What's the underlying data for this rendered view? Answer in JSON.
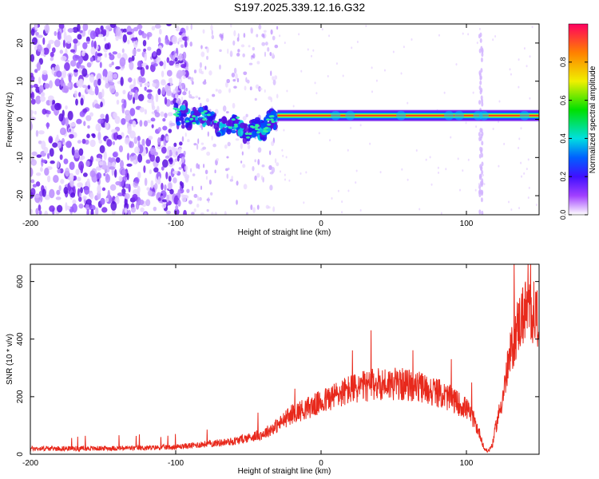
{
  "title": "S197.2025.339.12.16.G32",
  "chart_data": [
    {
      "type": "heatmap",
      "panel": "spectrogram",
      "xlabel": "Height of straight line (km)",
      "ylabel": "Frequency (Hz)",
      "xlim": [
        -200,
        150
      ],
      "ylim": [
        -25,
        25
      ],
      "xticks": [
        -200,
        -100,
        0,
        100
      ],
      "xtick_labels": [
        "-200",
        "-100",
        "0",
        "100"
      ],
      "yticks": [
        -20,
        -10,
        0,
        10,
        20
      ],
      "ytick_labels": [
        "-20",
        "-10",
        "0",
        "10",
        "20"
      ],
      "colorbar": {
        "label": "Normalized spectral amplitude",
        "range": [
          0,
          1
        ],
        "ticks": [
          0.0,
          0.2,
          0.4,
          0.6,
          0.8
        ],
        "tick_labels": [
          "0.0",
          "0.2",
          "0.4",
          "0.6",
          "0.8"
        ]
      },
      "features": {
        "noise_region_x": [
          -200,
          -100
        ],
        "scatter_region_x": [
          -100,
          -30
        ],
        "carrier_line_x": [
          -30,
          150
        ],
        "carrier_line_freq_hz": 1,
        "vertical_streak_x": 110
      },
      "ridge": {
        "x": [
          -100,
          -90,
          -80,
          -70,
          -60,
          -50,
          -45,
          -40,
          -35,
          -30
        ],
        "freq": [
          1.5,
          0,
          1,
          -2,
          -1,
          -4,
          -2,
          -3,
          0,
          0
        ]
      }
    },
    {
      "type": "line",
      "panel": "snr",
      "xlabel": "Height of straight line (km)",
      "ylabel": "SNR (10 * v/v)",
      "xlim": [
        -200,
        150
      ],
      "ylim": [
        0,
        660
      ],
      "xticks": [
        -200,
        -100,
        0,
        100
      ],
      "xtick_labels": [
        "-200",
        "-100",
        "0",
        "100"
      ],
      "yticks": [
        0,
        200,
        400,
        600
      ],
      "ytick_labels": [
        "0",
        "200",
        "400",
        "600"
      ],
      "series": [
        {
          "name": "SNR",
          "color": "#e8291c",
          "x": [
            -200,
            -160,
            -120,
            -100,
            -80,
            -60,
            -40,
            -30,
            -20,
            -10,
            0,
            10,
            20,
            30,
            40,
            50,
            60,
            70,
            80,
            90,
            100,
            105,
            110,
            112,
            115,
            118,
            120,
            125,
            130,
            135,
            140,
            145,
            150
          ],
          "values": [
            20,
            20,
            22,
            25,
            35,
            45,
            70,
            100,
            140,
            160,
            180,
            205,
            225,
            235,
            245,
            245,
            240,
            230,
            215,
            190,
            160,
            120,
            60,
            20,
            10,
            35,
            90,
            200,
            340,
            440,
            500,
            495,
            480
          ]
        }
      ]
    }
  ]
}
